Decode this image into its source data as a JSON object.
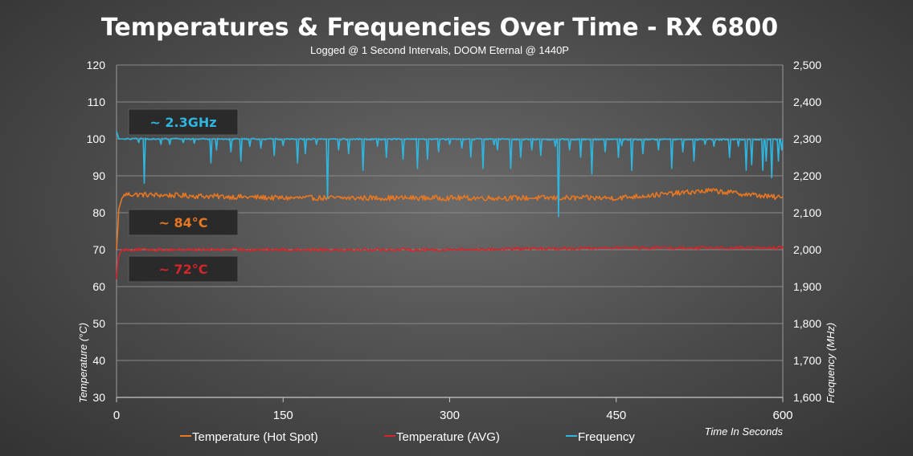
{
  "chart_data": {
    "type": "line",
    "title": "Temperatures & Frequencies Over Time - RX 6800",
    "subtitle": "Logged @ 1 Second Intervals, DOOM Eternal @ 1440P",
    "xlabel": "Time In Seconds",
    "ylabel_left": "Temperature (°C)",
    "ylabel_right": "Frequency  (MHz)",
    "xlim": [
      0,
      600
    ],
    "ylim_left": [
      30,
      120
    ],
    "ylim_right": [
      1600,
      2500
    ],
    "x_ticks": [
      "0",
      "150",
      "300",
      "450",
      "600"
    ],
    "x_tick_values": [
      0,
      150,
      300,
      450,
      600
    ],
    "y_left_ticks": [
      "30",
      "40",
      "50",
      "60",
      "70",
      "80",
      "90",
      "100",
      "110",
      "120"
    ],
    "y_left_tick_values": [
      30,
      40,
      50,
      60,
      70,
      80,
      90,
      100,
      110,
      120
    ],
    "y_right_ticks": [
      "1,600",
      "1,700",
      "1,800",
      "1,900",
      "2,000",
      "2,100",
      "2,200",
      "2,300",
      "2,400",
      "2,500"
    ],
    "y_right_tick_values": [
      1600,
      1700,
      1800,
      1900,
      2000,
      2100,
      2200,
      2300,
      2400,
      2500
    ],
    "grid": true,
    "legend_position": "bottom",
    "series": [
      {
        "name": "Temperature (Hot Spot)",
        "axis": "left",
        "color": "#e87722",
        "baseline": 83.5,
        "noise": 0.7,
        "keypoints": [
          [
            0,
            70
          ],
          [
            1,
            75
          ],
          [
            2,
            81
          ],
          [
            4,
            83
          ],
          [
            5,
            84
          ],
          [
            8,
            85
          ],
          [
            150,
            84
          ],
          [
            300,
            84
          ],
          [
            450,
            84
          ],
          [
            535,
            86
          ],
          [
            600,
            84
          ]
        ]
      },
      {
        "name": "Temperature (AVG)",
        "axis": "left",
        "color": "#d6252a",
        "baseline": 70.3,
        "noise": 0.4,
        "keypoints": [
          [
            0,
            62
          ],
          [
            1,
            67
          ],
          [
            3,
            69
          ],
          [
            5,
            70
          ],
          [
            150,
            70
          ],
          [
            300,
            70
          ],
          [
            450,
            70.5
          ],
          [
            600,
            70.5
          ]
        ]
      },
      {
        "name": "Frequency",
        "axis": "right",
        "color": "#2fb6e0",
        "baseline": 2298,
        "noise": 2,
        "keypoints": [
          [
            0,
            2320
          ],
          [
            2,
            2300
          ],
          [
            600,
            2298
          ]
        ],
        "dips": [
          [
            25,
            2180
          ],
          [
            40,
            2285
          ],
          [
            60,
            2290
          ],
          [
            85,
            2235
          ],
          [
            90,
            2270
          ],
          [
            103,
            2265
          ],
          [
            112,
            2240
          ],
          [
            130,
            2275
          ],
          [
            142,
            2255
          ],
          [
            163,
            2235
          ],
          [
            170,
            2260
          ],
          [
            190,
            2140
          ],
          [
            200,
            2270
          ],
          [
            209,
            2260
          ],
          [
            222,
            2215
          ],
          [
            243,
            2250
          ],
          [
            258,
            2245
          ],
          [
            271,
            2220
          ],
          [
            280,
            2245
          ],
          [
            290,
            2265
          ],
          [
            311,
            2275
          ],
          [
            319,
            2250
          ],
          [
            330,
            2220
          ],
          [
            343,
            2270
          ],
          [
            355,
            2220
          ],
          [
            364,
            2250
          ],
          [
            374,
            2270
          ],
          [
            382,
            2255
          ],
          [
            398,
            2090
          ],
          [
            408,
            2270
          ],
          [
            418,
            2250
          ],
          [
            428,
            2205
          ],
          [
            440,
            2265
          ],
          [
            452,
            2250
          ],
          [
            464,
            2215
          ],
          [
            474,
            2260
          ],
          [
            488,
            2270
          ],
          [
            500,
            2220
          ],
          [
            510,
            2265
          ],
          [
            520,
            2240
          ],
          [
            538,
            2280
          ],
          [
            552,
            2250
          ],
          [
            567,
            2215
          ],
          [
            572,
            2230
          ],
          [
            582,
            2215
          ],
          [
            585,
            2240
          ],
          [
            590,
            2195
          ],
          [
            596,
            2240
          ],
          [
            599,
            2270
          ]
        ],
        "extra_dips": [
          [
            20,
            2290
          ],
          [
            48,
            2285
          ],
          [
            70,
            2288
          ],
          [
            120,
            2280
          ],
          [
            150,
            2282
          ],
          [
            180,
            2285
          ],
          [
            235,
            2280
          ],
          [
            300,
            2285
          ],
          [
            340,
            2284
          ],
          [
            395,
            2280
          ],
          [
            455,
            2282
          ],
          [
            530,
            2285
          ],
          [
            560,
            2280
          ]
        ]
      }
    ],
    "annotations": [
      {
        "text": "~ 2.3GHz",
        "color": "#2fb6e0"
      },
      {
        "text": "~ 84°C",
        "color": "#e87722"
      },
      {
        "text": "~ 72°C",
        "color": "#d6252a"
      }
    ]
  }
}
